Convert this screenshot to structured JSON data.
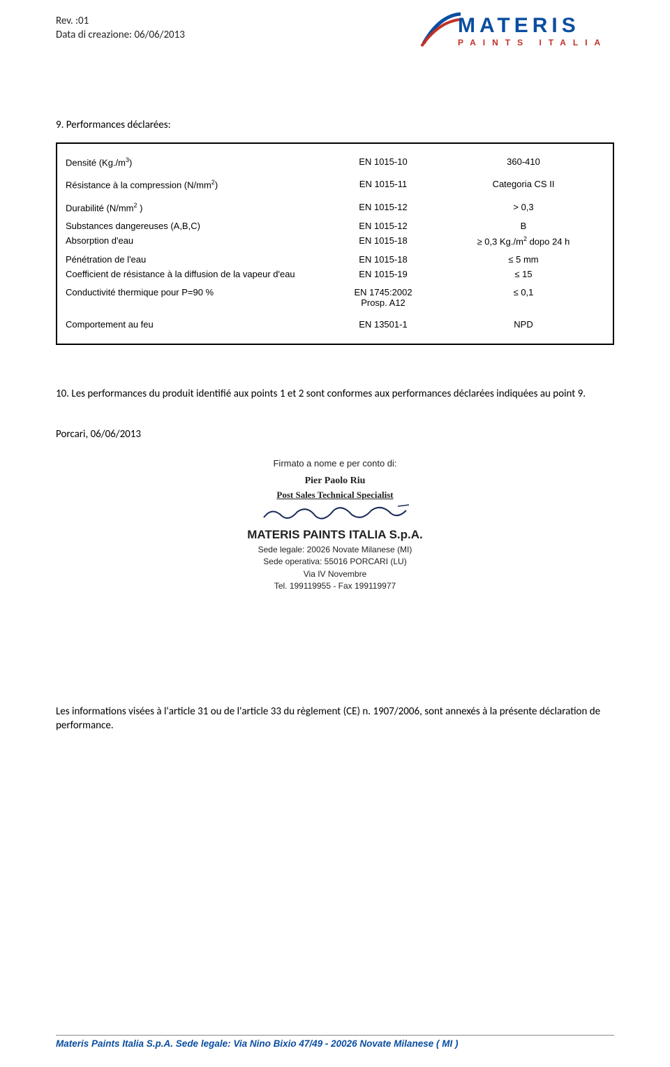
{
  "header": {
    "rev": "Rev. :01",
    "creation": "Data di creazione: 06/06/2013",
    "logo_main": "MATERIS",
    "logo_sub": "PAINTS ITALIA"
  },
  "section9_title": "9. Performances déclarées:",
  "table": {
    "rows": [
      {
        "label": "Densité (Kg./m",
        "sup": "3",
        "label2": ")",
        "std": "EN 1015-10",
        "val": "360-410",
        "spaced": true
      },
      {
        "label": "Résistance à la compression (N/mm",
        "sup": "2",
        "label2": ")",
        "std": "EN 1015-11",
        "val": "Categoria CS II",
        "spaced": true
      },
      {
        "label": "Durabilité (N/mm",
        "sup": "2",
        "label2": " )",
        "std": "EN 1015-12",
        "val": "> 0,3",
        "spaced": true
      },
      {
        "label": "Substances dangereuses (A,B,C)",
        "std": "EN 1015-12",
        "val": "B",
        "spaced": false
      },
      {
        "label": "Absorption d'eau",
        "std": "EN 1015-18",
        "val_html": "≥ 0,3 Kg./m<sup>2</sup> dopo 24 h",
        "spaced": false
      },
      {
        "label": "Pénétration de l'eau",
        "std": "EN 1015-18",
        "val": "≤ 5 mm",
        "spaced_top": true
      },
      {
        "label": "Coefficient de résistance à la diffusion de la vapeur d'eau",
        "std": "EN 1015-19",
        "val": "≤ 15",
        "spaced": false
      },
      {
        "label": "Conductivité thermique pour P=90 %",
        "std_html": "EN 1745:2002<br>Prosp. A12",
        "val": "≤ 0,1",
        "spaced": true
      },
      {
        "label": "Comportement au feu",
        "std": "EN 13501-1",
        "val": "NPD",
        "spaced": true
      }
    ]
  },
  "section10": "10. Les performances du produit identifié aux points 1 et 2 sont conformes aux performances déclarées indiquées au point 9.",
  "sign_date": "Porcari, 06/06/2013",
  "signature": {
    "intro": "Firmato a nome e per conto di:",
    "name": "Pier Paolo Riu",
    "title": "Post Sales Technical Specialist",
    "company": "MATERIS PAINTS ITALIA S.p.A.",
    "line1": "Sede legale: 20026 Novate Milanese (MI)",
    "line2": "Sede operativa: 55016 PORCARI (LU)",
    "line3": "Via IV Novembre",
    "line4": "Tel. 199119955 - Fax 199119977"
  },
  "footnote": "Les informations visées à l'article 31 ou de l'article 33 du règlement (CE) n. 1907/2006, sont annexés à la présente déclaration de performance.",
  "footer": "Materis Paints Italia S.p.A.  Sede legale:  Via Nino Bixio 47/49 - 20026  Novate Milanese  ( MI )"
}
